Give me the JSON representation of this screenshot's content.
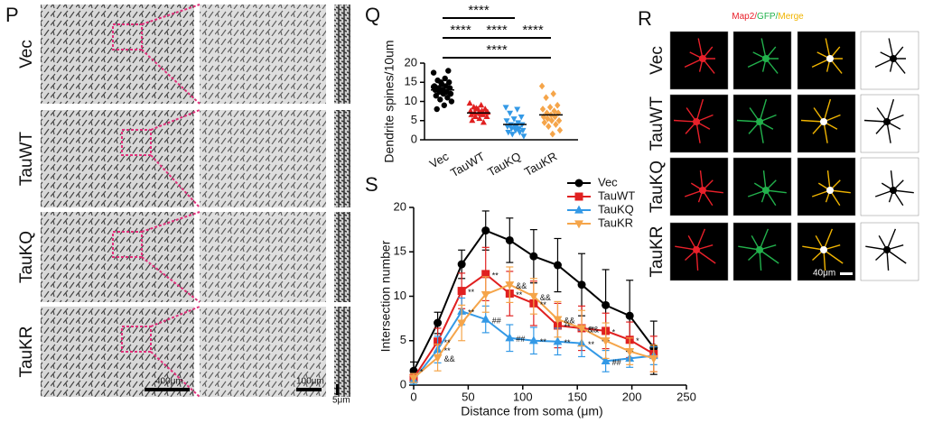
{
  "panel_labels": [
    "P",
    "Q",
    "R",
    "S"
  ],
  "panel_p": {
    "rows": [
      "Vec",
      "TauWT",
      "TauKQ",
      "TauKR"
    ],
    "scale_bars": [
      "400μm",
      "100μm",
      "5μm"
    ]
  },
  "panel_r": {
    "channels": [
      "Map2/",
      "GFP/",
      "Merge"
    ],
    "channel_colors": [
      "#e8202a",
      "#22b14c",
      "#f0b400"
    ],
    "rows": [
      "Vec",
      "TauWT",
      "TauKQ",
      "TauKR"
    ],
    "scale_bar": "40μm"
  },
  "chart_data": [
    {
      "type": "dot",
      "ylabel": "Dendrite spines/10um",
      "categories": [
        "Vec",
        "TauWT",
        "TauKQ",
        "TauKR"
      ],
      "colors": [
        "#000000",
        "#e02020",
        "#3399e6",
        "#f5a54a"
      ],
      "markers": [
        "circle",
        "triangle-up",
        "triangle-down",
        "diamond"
      ],
      "values": [
        [
          17.5,
          16,
          15.5,
          15,
          14.5,
          14,
          14,
          13.5,
          13.5,
          13,
          13,
          12.5,
          12.5,
          12,
          12,
          11.5,
          11,
          10.5,
          10,
          9,
          8,
          18,
          15,
          13.8
        ],
        [
          9.5,
          9,
          8.5,
          8,
          8,
          7.5,
          7.5,
          7,
          7,
          7,
          6.5,
          6.5,
          6,
          6,
          5.5,
          5,
          4.5,
          8.2,
          7.2,
          6.8
        ],
        [
          8.5,
          8,
          7,
          6,
          5.5,
          5,
          4.5,
          4,
          4,
          3.5,
          3.5,
          3,
          3,
          2.5,
          2.5,
          2,
          2,
          1.5,
          1,
          3.8
        ],
        [
          14,
          12,
          11,
          9,
          8.5,
          8,
          7.5,
          7,
          7,
          6.5,
          6,
          6,
          5.5,
          5,
          5,
          4.5,
          4,
          3.5,
          2.5,
          1.5
        ]
      ],
      "means": [
        13,
        7,
        4,
        6.5
      ],
      "ylim": [
        0,
        20
      ],
      "yticks": [
        0,
        5,
        10,
        15,
        20
      ],
      "annotations": [
        {
          "text": "****",
          "from": 0,
          "to": 3
        },
        {
          "text": "****",
          "from": 0,
          "to": 1
        },
        {
          "text": "****",
          "from": 1,
          "to": 2
        },
        {
          "text": "****",
          "from": 2,
          "to": 3
        },
        {
          "text": "****",
          "from": 0,
          "to": 2
        }
      ]
    },
    {
      "type": "line",
      "xlabel": "Distance from soma (μm)",
      "ylabel": "Intersection number",
      "x": [
        0,
        22,
        44,
        66,
        88,
        110,
        132,
        154,
        176,
        198,
        220
      ],
      "xlim": [
        0,
        250
      ],
      "xticks": [
        0,
        50,
        100,
        150,
        200,
        250
      ],
      "ylim": [
        0,
        20
      ],
      "yticks": [
        0,
        5,
        10,
        15,
        20
      ],
      "legend": "upper right",
      "series": [
        {
          "name": "Vec",
          "color": "#000000",
          "marker": "circle",
          "values": [
            1.6,
            7.0,
            13.6,
            17.4,
            16.3,
            14.5,
            13.5,
            11.3,
            9.0,
            7.8,
            4.2
          ],
          "errors": [
            1,
            1.2,
            1.6,
            2.2,
            2.5,
            3,
            3,
            3.5,
            4,
            4,
            3
          ]
        },
        {
          "name": "TauWT",
          "color": "#e02020",
          "marker": "square",
          "values": [
            0.8,
            4.9,
            10.6,
            12.5,
            10.3,
            9.2,
            6.7,
            6.4,
            6.1,
            5.1,
            3.5
          ],
          "errors": [
            0.5,
            1.5,
            2,
            3,
            2.5,
            2.5,
            2.5,
            2.5,
            2,
            2,
            2
          ]
        },
        {
          "name": "TauKQ",
          "color": "#3399e6",
          "marker": "triangle-up",
          "values": [
            0.6,
            4.0,
            8.3,
            7.4,
            5.3,
            5.0,
            4.9,
            4.7,
            2.7,
            3.0,
            3.3
          ],
          "errors": [
            0.5,
            1.5,
            1.5,
            1.5,
            1.5,
            1.5,
            1.5,
            1.5,
            1.2,
            1,
            1
          ]
        },
        {
          "name": "TauKR",
          "color": "#f5a54a",
          "marker": "triangle-down",
          "values": [
            0.8,
            3.1,
            7.0,
            10.2,
            11.3,
            10.0,
            7.4,
            6.4,
            5.0,
            3.8,
            3.0
          ],
          "errors": [
            0.5,
            1.5,
            2,
            2,
            2,
            2,
            2,
            2,
            2,
            1.5,
            1.5
          ]
        }
      ],
      "annotations": [
        {
          "series": 0,
          "index": 0,
          "text": "*"
        },
        {
          "series": 1,
          "index": 1,
          "text": "**"
        },
        {
          "series": 1,
          "index": 2,
          "text": "**"
        },
        {
          "series": 1,
          "index": 3,
          "text": "**"
        },
        {
          "series": 1,
          "index": 4,
          "text": "**"
        },
        {
          "series": 1,
          "index": 5,
          "text": "**"
        },
        {
          "series": 1,
          "index": 6,
          "text": "**"
        },
        {
          "series": 1,
          "index": 7,
          "text": "**"
        },
        {
          "series": 1,
          "index": 8,
          "text": "*"
        },
        {
          "series": 1,
          "index": 9,
          "text": "*"
        },
        {
          "series": 2,
          "index": 1,
          "text": "**"
        },
        {
          "series": 2,
          "index": 2,
          "text": "**"
        },
        {
          "series": 2,
          "index": 3,
          "text": "##"
        },
        {
          "series": 2,
          "index": 4,
          "text": "##"
        },
        {
          "series": 2,
          "index": 5,
          "text": "**"
        },
        {
          "series": 2,
          "index": 6,
          "text": "**"
        },
        {
          "series": 2,
          "index": 7,
          "text": "**"
        },
        {
          "series": 2,
          "index": 8,
          "text": "##"
        },
        {
          "series": 3,
          "index": 1,
          "text": "&&"
        },
        {
          "series": 3,
          "index": 4,
          "text": "&&"
        },
        {
          "series": 3,
          "index": 5,
          "text": "&&"
        },
        {
          "series": 3,
          "index": 6,
          "text": "&&"
        },
        {
          "series": 3,
          "index": 7,
          "text": "&&"
        }
      ]
    }
  ]
}
